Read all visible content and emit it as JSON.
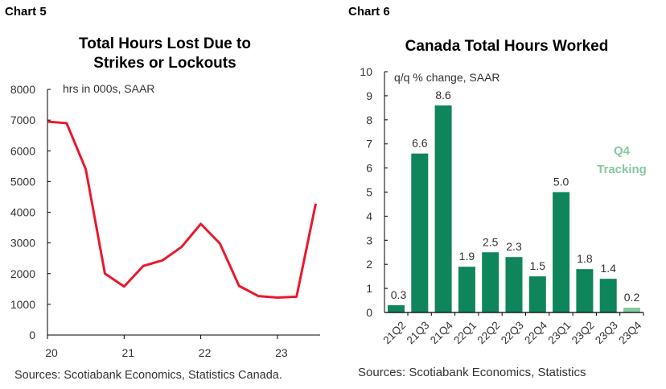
{
  "chart5": {
    "label": "Chart 5",
    "title_line1": "Total Hours Lost Due to",
    "title_line2": "Strikes or Lockouts",
    "source": "Sources: Scotiabank Economics, Statistics Canada."
  },
  "chart6": {
    "label": "Chart 6",
    "title": "Canada Total Hours Worked",
    "source": "Sources: Scotiabank Economics, Statistics",
    "annotation_line1": "Q4",
    "annotation_line2": "Tracking"
  },
  "chart_data": [
    {
      "type": "line",
      "title": "Total Hours Lost Due to Strikes or Lockouts",
      "ylabel": "hrs in 000s, SAAR",
      "ylim": [
        0,
        8000
      ],
      "yticks": [
        0,
        1000,
        2000,
        3000,
        4000,
        5000,
        6000,
        7000,
        8000
      ],
      "xticks": [
        "20",
        "21",
        "22",
        "23"
      ],
      "x": [
        20.0,
        20.25,
        20.5,
        20.75,
        21.0,
        21.25,
        21.5,
        21.75,
        22.0,
        22.25,
        22.5,
        22.75,
        23.0,
        23.25,
        23.5
      ],
      "values": [
        6950,
        6900,
        5400,
        2000,
        1580,
        2250,
        2430,
        2870,
        3620,
        2980,
        1600,
        1270,
        1220,
        1250,
        4280
      ],
      "color": "#e8192c",
      "grid": false
    },
    {
      "type": "bar",
      "title": "Canada Total Hours Worked",
      "ylabel": "q/q % change, SAAR",
      "ylim": [
        0,
        10
      ],
      "yticks": [
        0,
        1,
        2,
        3,
        4,
        5,
        6,
        7,
        8,
        9,
        10
      ],
      "categories": [
        "21Q2",
        "21Q3",
        "21Q4",
        "22Q1",
        "22Q2",
        "22Q3",
        "22Q4",
        "23Q1",
        "23Q2",
        "23Q3",
        "23Q4"
      ],
      "values": [
        0.3,
        6.6,
        8.6,
        1.9,
        2.5,
        2.3,
        1.5,
        5.0,
        1.8,
        1.4,
        0.2
      ],
      "data_labels": [
        "0.3",
        "6.6",
        "8.6",
        "1.9",
        "2.5",
        "2.3",
        "1.5",
        "5.0",
        "1.8",
        "1.4",
        "0.2"
      ],
      "color": "#0e855a",
      "tracking_color": "#86c8a3",
      "grid": false
    }
  ]
}
